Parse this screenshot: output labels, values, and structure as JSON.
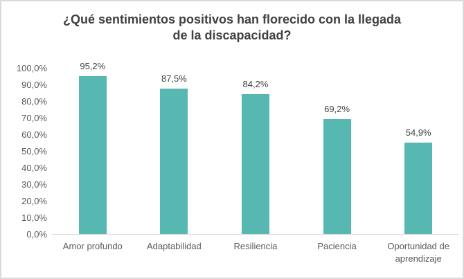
{
  "chart_data": {
    "type": "bar",
    "title": "¿Qué sentimientos positivos han florecido con la llegada de la discapacidad?",
    "categories": [
      "Amor profundo",
      "Adaptabilidad",
      "Resiliencia",
      "Paciencia",
      "Oportunidad de aprendizaje"
    ],
    "values": [
      95.2,
      87.5,
      84.2,
      69.2,
      54.9
    ],
    "value_labels": [
      "95,2%",
      "87,5%",
      "84,2%",
      "69,2%",
      "54,9%"
    ],
    "xlabel": "",
    "ylabel": "",
    "ylim": [
      0,
      100
    ],
    "ytick_step": 10,
    "ytick_labels": [
      "0,0%",
      "10,0%",
      "20,0%",
      "30,0%",
      "40,0%",
      "50,0%",
      "60,0%",
      "70,0%",
      "80,0%",
      "90,0%",
      "100,0%"
    ],
    "grid": false,
    "legend": "none",
    "bar_color": "#57B7B1",
    "axis_line_color": "#D9D9D9",
    "tick_text_color": "#595959",
    "label_text_color": "#3F3F3F",
    "title_color": "#404040",
    "frame_border_color": "#D9D9D9"
  }
}
